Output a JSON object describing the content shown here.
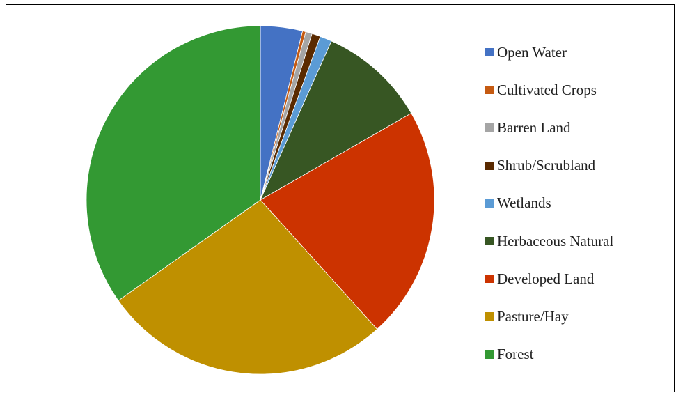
{
  "chart_data": {
    "type": "pie",
    "title": "",
    "legend_position": "right",
    "start_angle_deg": 0,
    "direction": "clockwise",
    "slices": [
      {
        "label": "Open Water",
        "value": 3.9,
        "color": "#4472c4"
      },
      {
        "label": "Cultivated Crops",
        "value": 0.3,
        "color": "#c55a11"
      },
      {
        "label": "Barren Land",
        "value": 0.6,
        "color": "#a5a5a5"
      },
      {
        "label": "Shrub/Scrubland",
        "value": 0.8,
        "color": "#5a2a00"
      },
      {
        "label": "Wetlands",
        "value": 1.1,
        "color": "#5b9bd5"
      },
      {
        "label": "Herbaceous Natural",
        "value": 10.0,
        "color": "#375623"
      },
      {
        "label": "Developed Land",
        "value": 21.6,
        "color": "#cc3300"
      },
      {
        "label": "Pasture/Hay",
        "value": 26.9,
        "color": "#bf9000"
      },
      {
        "label": "Forest",
        "value": 34.8,
        "color": "#339933"
      }
    ]
  }
}
